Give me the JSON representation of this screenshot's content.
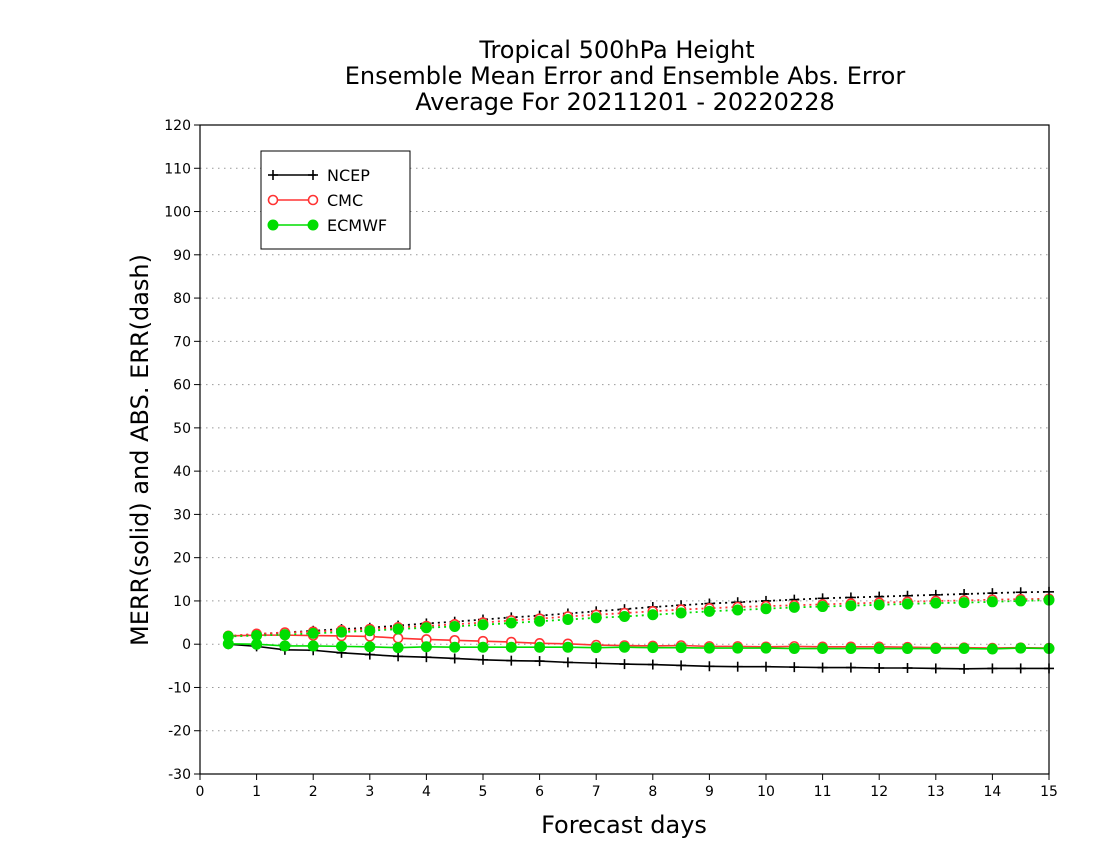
{
  "chart_data": {
    "type": "line",
    "title_lines": [
      "Tropical 500hPa Height",
      "Ensemble Mean Error and Ensemble Abs. Error",
      "Average For 20211201 - 20220228"
    ],
    "xlabel": "Forecast days",
    "ylabel": "MERR(solid) and ABS. ERR(dash)",
    "xlim": [
      0,
      15
    ],
    "ylim": [
      -30,
      120
    ],
    "x_ticks": [
      0,
      1,
      2,
      3,
      4,
      5,
      6,
      7,
      8,
      9,
      10,
      11,
      12,
      13,
      14,
      15
    ],
    "y_ticks": [
      -30,
      -20,
      -10,
      0,
      10,
      20,
      30,
      40,
      50,
      60,
      70,
      80,
      90,
      100,
      110,
      120
    ],
    "grid": "horizontal dotted",
    "legend_position": "top-left",
    "x": [
      0.5,
      1,
      1.5,
      2,
      2.5,
      3,
      3.5,
      4,
      4.5,
      5,
      5.5,
      6,
      6.5,
      7,
      7.5,
      8,
      8.5,
      9,
      9.5,
      10,
      10.5,
      11,
      11.5,
      12,
      12.5,
      13,
      13.5,
      14,
      14.5,
      15
    ],
    "series": [
      {
        "name": "NCEP",
        "color": "#000000",
        "marker": "plus",
        "mean_error": [
          0,
          -0.5,
          -1.3,
          -1.4,
          -2.0,
          -2.4,
          -2.8,
          -3.0,
          -3.3,
          -3.6,
          -3.8,
          -3.9,
          -4.2,
          -4.4,
          -4.6,
          -4.7,
          -4.9,
          -5.1,
          -5.2,
          -5.2,
          -5.3,
          -5.4,
          -5.4,
          -5.5,
          -5.5,
          -5.6,
          -5.7,
          -5.6,
          -5.6,
          -5.6
        ],
        "abs_error": [
          1.8,
          2.3,
          2.7,
          3.1,
          3.5,
          3.8,
          4.3,
          4.8,
          5.2,
          5.7,
          6.2,
          6.6,
          7.1,
          7.6,
          8.1,
          8.6,
          9.0,
          9.4,
          9.7,
          10.0,
          10.3,
          10.6,
          10.8,
          11.0,
          11.2,
          11.4,
          11.6,
          11.8,
          12.0,
          12.1
        ]
      },
      {
        "name": "CMC",
        "color": "#ff3333",
        "marker": "open-circle",
        "mean_error": [
          1.9,
          2.1,
          2.1,
          2.0,
          1.9,
          1.8,
          1.4,
          1.1,
          0.9,
          0.7,
          0.5,
          0.2,
          0.1,
          -0.2,
          -0.3,
          -0.4,
          -0.3,
          -0.5,
          -0.5,
          -0.6,
          -0.5,
          -0.6,
          -0.6,
          -0.6,
          -0.7,
          -0.8,
          -0.8,
          -0.9,
          -0.8,
          -0.9
        ],
        "abs_error": [
          1.9,
          2.4,
          2.7,
          2.9,
          3.2,
          3.5,
          3.9,
          4.2,
          4.6,
          5.0,
          5.5,
          5.9,
          6.4,
          6.8,
          7.2,
          7.6,
          8.0,
          8.3,
          8.6,
          8.8,
          9.0,
          9.2,
          9.4,
          9.6,
          9.8,
          10.0,
          10.1,
          10.3,
          10.4,
          10.5
        ]
      },
      {
        "name": "ECMWF",
        "color": "#00dd00",
        "marker": "filled-circle",
        "mean_error": [
          0.1,
          0,
          -0.4,
          -0.4,
          -0.5,
          -0.6,
          -0.8,
          -0.6,
          -0.7,
          -0.7,
          -0.7,
          -0.7,
          -0.7,
          -0.8,
          -0.7,
          -0.8,
          -0.8,
          -0.9,
          -0.9,
          -0.9,
          -1.0,
          -1.0,
          -1.0,
          -1.0,
          -1.0,
          -1.0,
          -1.0,
          -1.1,
          -0.9,
          -1.0
        ],
        "abs_error": [
          1.8,
          2.0,
          2.2,
          2.5,
          2.8,
          3.1,
          3.5,
          3.8,
          4.1,
          4.5,
          4.9,
          5.3,
          5.7,
          6.1,
          6.4,
          6.8,
          7.2,
          7.6,
          7.9,
          8.2,
          8.5,
          8.7,
          8.9,
          9.1,
          9.3,
          9.5,
          9.6,
          9.8,
          10.0,
          10.2
        ]
      }
    ]
  }
}
